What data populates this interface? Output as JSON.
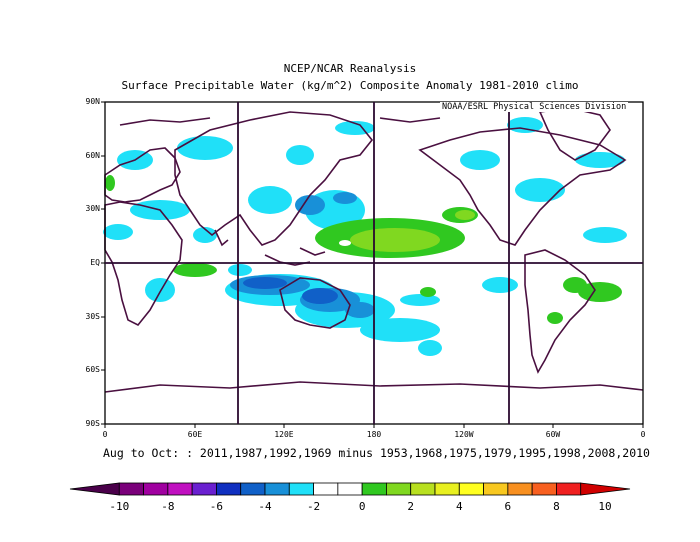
{
  "title_line1": "NCEP/NCAR Reanalysis",
  "title_line2": "Surface Precipitable Water (kg/m^2) Composite Anomaly 1981-2010 climo",
  "credit": "NOAA/ESRL Physical Sciences Division",
  "subtitle": "Aug to Oct: : 2011,1987,1992,1969 minus 1953,1968,1975,1979,1995,1998,2008,2010",
  "lat_labels": [
    "90N",
    "60N",
    "30N",
    "EQ",
    "30S",
    "60S",
    "90S"
  ],
  "lon_labels": [
    "0",
    "60E",
    "120E",
    "180",
    "120W",
    "60W",
    "0"
  ],
  "colorbar": {
    "labels": [
      "-10",
      "-8",
      "-6",
      "-4",
      "-2",
      "0",
      "2",
      "4",
      "6",
      "8",
      "10"
    ],
    "colors": [
      "#4a004a",
      "#7a007a",
      "#a000a0",
      "#c010c0",
      "#6a20d0",
      "#1030c0",
      "#1060c8",
      "#1890d8",
      "#20e0f8",
      "#ffffff",
      "#ffffff",
      "#30c820",
      "#80d820",
      "#b8e020",
      "#e8f020",
      "#ffff20",
      "#f8c820",
      "#f89020",
      "#f86020",
      "#f02020",
      "#d00000"
    ]
  }
}
